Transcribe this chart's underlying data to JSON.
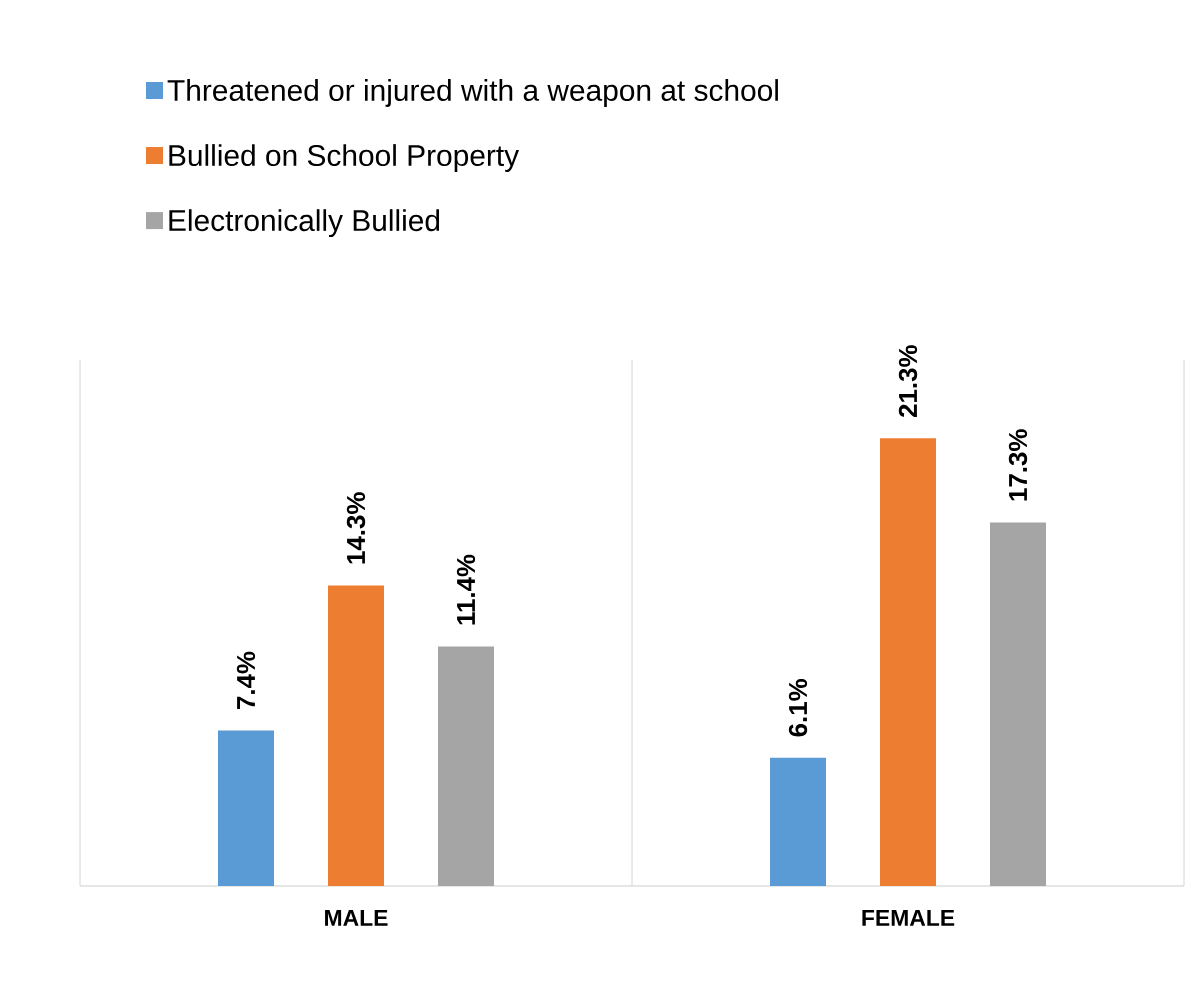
{
  "chart_data": {
    "type": "bar",
    "categories": [
      "MALE",
      "FEMALE"
    ],
    "series": [
      {
        "name": "Threatened or injured with a weapon at school",
        "color": "#5b9bd5",
        "values": [
          7.4,
          6.1
        ],
        "value_labels": [
          "7.4%",
          "6.1%"
        ]
      },
      {
        "name": "Bullied on School Property",
        "color": "#ed7d31",
        "values": [
          14.3,
          21.3
        ],
        "value_labels": [
          "14.3%",
          "21.3%"
        ]
      },
      {
        "name": "Electronically Bullied",
        "color": "#a5a5a5",
        "values": [
          11.4,
          17.3
        ],
        "value_labels": [
          "11.4%",
          "17.3%"
        ]
      }
    ],
    "legend": "top"
  }
}
